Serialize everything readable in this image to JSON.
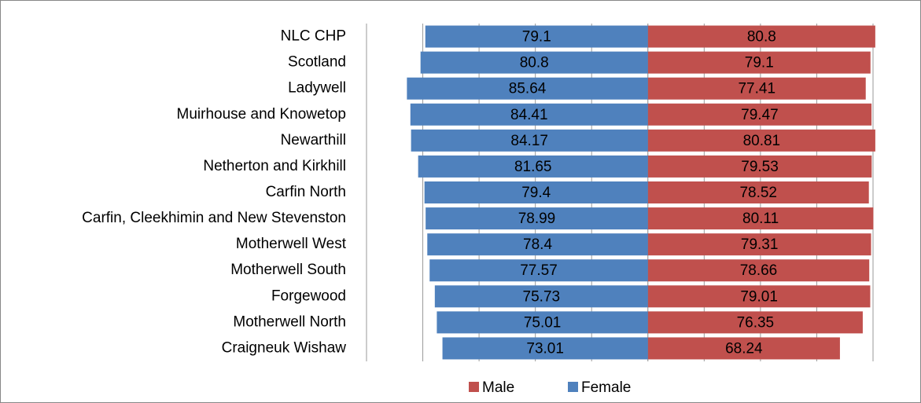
{
  "chart_data": {
    "type": "butterfly-bar",
    "categories": [
      "NLC CHP",
      "Scotland",
      "Ladywell",
      "Muirhouse and Knowetop",
      "Newarthill",
      "Netherton and Kirkhill",
      "Carfin North",
      "Carfin, Cleekhimin and New Stevenston",
      "Motherwell West",
      "Motherwell South",
      "Forgewood",
      "Motherwell North",
      "Craigneuk Wishaw"
    ],
    "series": [
      {
        "name": "Male",
        "color": "#c0504d",
        "side": "right",
        "values": [
          80.8,
          79.1,
          77.41,
          79.47,
          80.81,
          79.53,
          78.52,
          80.11,
          79.31,
          78.66,
          79.01,
          76.35,
          68.24
        ]
      },
      {
        "name": "Female",
        "color": "#4f81bd",
        "side": "left",
        "values": [
          79.1,
          80.8,
          85.64,
          84.41,
          84.17,
          81.65,
          79.4,
          78.99,
          78.4,
          77.57,
          75.73,
          75.01,
          73.01
        ]
      }
    ],
    "xlim": [
      -100,
      80
    ],
    "xticks": [
      -100,
      -80,
      -60,
      -40,
      -20,
      0,
      20,
      40,
      60,
      80
    ],
    "grid": true,
    "legend": "bottom"
  }
}
